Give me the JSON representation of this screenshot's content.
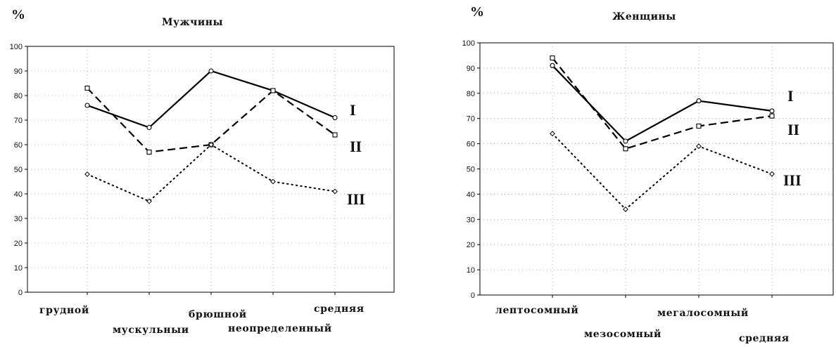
{
  "chart_data": [
    {
      "type": "line",
      "title": "Мужчины",
      "ylabel": "%",
      "ylim": [
        0,
        100
      ],
      "yticks": [
        0,
        10,
        20,
        30,
        40,
        50,
        60,
        70,
        80,
        90,
        100
      ],
      "categories": [
        "грудной",
        "мускульныи",
        "брюшной",
        "неопределенный",
        "средняя"
      ],
      "grid": true,
      "series": [
        {
          "name": "I",
          "style": "solid",
          "marker": "circle",
          "values": [
            76,
            67,
            90,
            82,
            71
          ]
        },
        {
          "name": "II",
          "style": "dashed",
          "marker": "square",
          "values": [
            83,
            57,
            60,
            82,
            64
          ]
        },
        {
          "name": "III",
          "style": "dotted",
          "marker": "diamond",
          "values": [
            48,
            37,
            60,
            45,
            41
          ]
        }
      ]
    },
    {
      "type": "line",
      "title": "Женщины",
      "ylabel": "%",
      "ylim": [
        0,
        100
      ],
      "yticks": [
        0,
        10,
        20,
        30,
        40,
        50,
        60,
        70,
        80,
        90,
        100
      ],
      "categories": [
        "лептосомный",
        "мезосомный",
        "мегалосомный",
        "средняя"
      ],
      "grid": true,
      "series": [
        {
          "name": "I",
          "style": "solid",
          "marker": "circle",
          "values": [
            91,
            61,
            77,
            73
          ]
        },
        {
          "name": "II",
          "style": "dashed",
          "marker": "square",
          "values": [
            94,
            58,
            67,
            71
          ]
        },
        {
          "name": "III",
          "style": "dotted",
          "marker": "diamond",
          "values": [
            64,
            34,
            59,
            48
          ]
        }
      ]
    }
  ]
}
